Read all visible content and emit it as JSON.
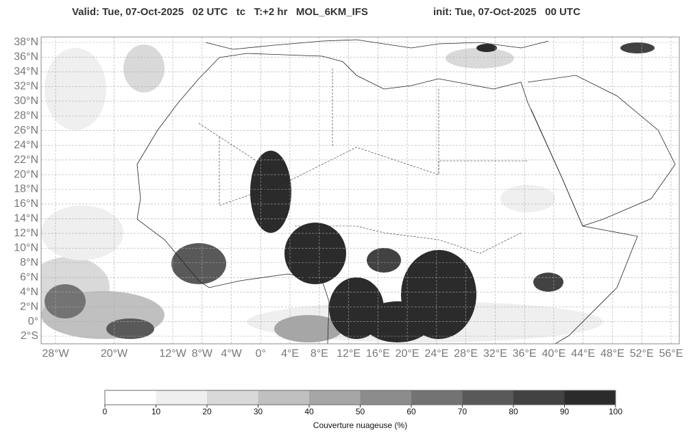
{
  "title": {
    "valid": "Valid: Tue, 07-Oct-2025   02 UTC   tc   T:+2 hr   MOL_6KM_IFS",
    "init": "init: Tue, 07-Oct-2025   00 UTC"
  },
  "map": {
    "lat_ticks": [
      {
        "value": 38,
        "label": "38°N"
      },
      {
        "value": 36,
        "label": "36°N"
      },
      {
        "value": 34,
        "label": "34°N"
      },
      {
        "value": 32,
        "label": "32°N"
      },
      {
        "value": 30,
        "label": "30°N"
      },
      {
        "value": 28,
        "label": "28°N"
      },
      {
        "value": 26,
        "label": "26°N"
      },
      {
        "value": 24,
        "label": "24°N"
      },
      {
        "value": 22,
        "label": "22°N"
      },
      {
        "value": 20,
        "label": "20°N"
      },
      {
        "value": 18,
        "label": "18°N"
      },
      {
        "value": 16,
        "label": "16°N"
      },
      {
        "value": 14,
        "label": "14°N"
      },
      {
        "value": 12,
        "label": "12°N"
      },
      {
        "value": 10,
        "label": "10°N"
      },
      {
        "value": 8,
        "label": "8°N"
      },
      {
        "value": 6,
        "label": "6°N"
      },
      {
        "value": 4,
        "label": "4°N"
      },
      {
        "value": 2,
        "label": "2°N"
      },
      {
        "value": 0,
        "label": "0°"
      },
      {
        "value": -2,
        "label": "2°S"
      }
    ],
    "lon_ticks": [
      {
        "value": -28,
        "label": "28°W"
      },
      {
        "value": -20,
        "label": "20°W"
      },
      {
        "value": -12,
        "label": "12°W"
      },
      {
        "value": -8,
        "label": "8°W"
      },
      {
        "value": -4,
        "label": "4°W"
      },
      {
        "value": 0,
        "label": "0°"
      },
      {
        "value": 4,
        "label": "4°E"
      },
      {
        "value": 8,
        "label": "8°E"
      },
      {
        "value": 12,
        "label": "12°E"
      },
      {
        "value": 16,
        "label": "16°E"
      },
      {
        "value": 20,
        "label": "20°E"
      },
      {
        "value": 24,
        "label": "24°E"
      },
      {
        "value": 28,
        "label": "28°E"
      },
      {
        "value": 32,
        "label": "32°E"
      },
      {
        "value": 36,
        "label": "36°E"
      },
      {
        "value": 40,
        "label": "40°E"
      },
      {
        "value": 44,
        "label": "44°E"
      },
      {
        "value": 48,
        "label": "48°E"
      },
      {
        "value": 52,
        "label": "52°E"
      },
      {
        "value": 56,
        "label": "56°E"
      }
    ]
  },
  "colorbar": {
    "ticks": [
      0,
      10,
      20,
      30,
      40,
      50,
      60,
      70,
      80,
      90,
      100
    ],
    "colors": [
      "#ffffff",
      "#efefef",
      "#d9d9d9",
      "#c0c0c0",
      "#a6a6a6",
      "#8c8c8c",
      "#737373",
      "#595959",
      "#424242",
      "#2b2b2b"
    ],
    "label": "Couverture nuageuse (%)"
  }
}
